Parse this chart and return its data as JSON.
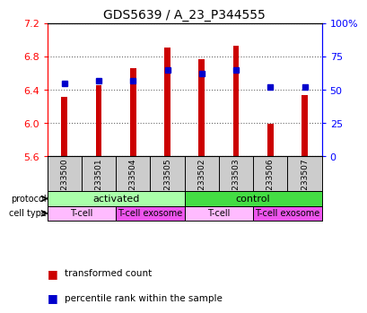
{
  "title": "GDS5639 / A_23_P344555",
  "samples": [
    "GSM1233500",
    "GSM1233501",
    "GSM1233504",
    "GSM1233505",
    "GSM1233502",
    "GSM1233503",
    "GSM1233506",
    "GSM1233507"
  ],
  "transformed_counts": [
    6.32,
    6.46,
    6.66,
    6.91,
    6.77,
    6.93,
    5.99,
    6.34
  ],
  "percentile_ranks": [
    55,
    57,
    57,
    65,
    62,
    65,
    52,
    52
  ],
  "y_min": 5.6,
  "y_max": 7.2,
  "y_ticks": [
    5.6,
    6.0,
    6.4,
    6.8,
    7.2
  ],
  "right_y_ticks": [
    0,
    25,
    50,
    75,
    100
  ],
  "right_y_labels": [
    "0",
    "25",
    "50",
    "75",
    "100%"
  ],
  "bar_color": "#cc0000",
  "marker_color": "#0000cc",
  "protocol_groups": [
    {
      "label": "activated",
      "start": 0,
      "end": 4,
      "color": "#aaffaa"
    },
    {
      "label": "control",
      "start": 4,
      "end": 8,
      "color": "#44dd44"
    }
  ],
  "cell_type_groups": [
    {
      "label": "T-cell",
      "start": 0,
      "end": 2,
      "color": "#ffbbff"
    },
    {
      "label": "T-cell exosome",
      "start": 2,
      "end": 4,
      "color": "#ee55ee"
    },
    {
      "label": "T-cell",
      "start": 4,
      "end": 6,
      "color": "#ffbbff"
    },
    {
      "label": "T-cell exosome",
      "start": 6,
      "end": 8,
      "color": "#ee55ee"
    }
  ],
  "legend_items": [
    {
      "label": "transformed count",
      "color": "#cc0000"
    },
    {
      "label": "percentile rank within the sample",
      "color": "#0000cc"
    }
  ],
  "title_fontsize": 10,
  "background_color": "#ffffff",
  "plot_bg_color": "#ffffff",
  "sample_band_color": "#cccccc"
}
